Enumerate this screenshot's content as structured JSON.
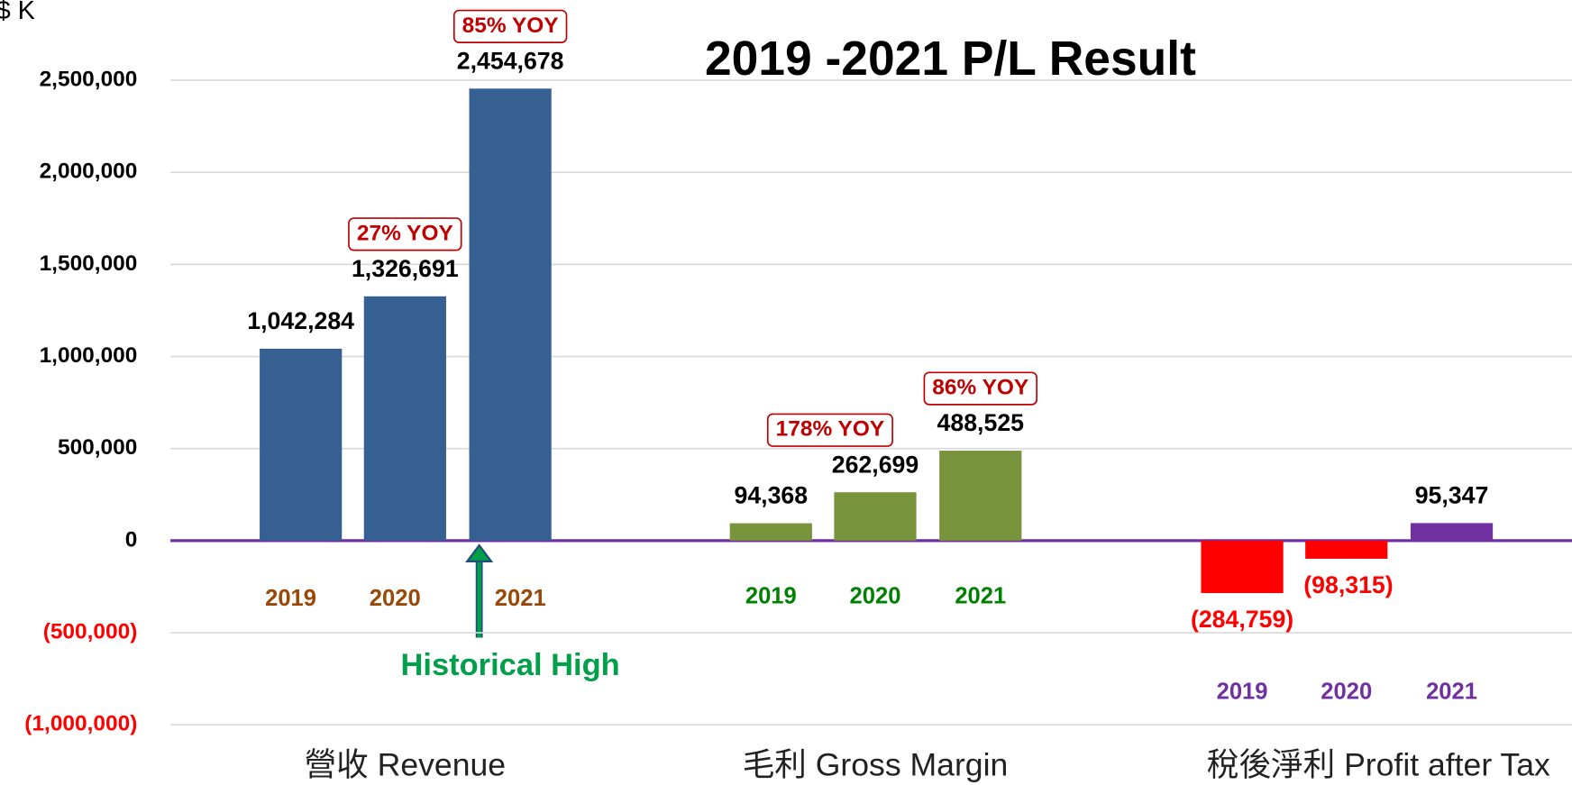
{
  "chart_data": {
    "type": "grouped-bar",
    "title": "2019 -2021 P/L Result",
    "y_unit": "$ K",
    "annotation": "Historical High",
    "ylim": [
      -1000000,
      2500000
    ],
    "yticks": [
      {
        "value": -1000000,
        "label": "(1,000,000)"
      },
      {
        "value": -500000,
        "label": "(500,000)"
      },
      0,
      {
        "value": 500000,
        "label": "500,000"
      },
      {
        "value": 1000000,
        "label": "1,000,000"
      },
      {
        "value": 1500000,
        "label": "1,500,000"
      },
      {
        "value": 2000000,
        "label": "2,000,000"
      },
      {
        "value": 2500000,
        "label": "2,500,000"
      }
    ],
    "grid": true,
    "groups": [
      {
        "name": "營收 Revenue",
        "categories": [
          "2019",
          "2020",
          "2021"
        ],
        "values": [
          1042284,
          1326691,
          2454678
        ],
        "value_labels": [
          "1,042,284",
          "1,326,691",
          "2,454,678"
        ],
        "yoy": [
          null,
          "27% YOY",
          "85% YOY"
        ],
        "colors": [
          "#376092",
          "#376092",
          "#376092"
        ],
        "category_color": "#984807"
      },
      {
        "name": "毛利 Gross Margin",
        "categories": [
          "2019",
          "2020",
          "2021"
        ],
        "values": [
          94368,
          262699,
          488525
        ],
        "value_labels": [
          "94,368",
          "262,699",
          "488,525"
        ],
        "yoy": [
          null,
          "178% YOY",
          "86% YOY"
        ],
        "colors": [
          "#77933c",
          "#77933c",
          "#77933c"
        ],
        "category_color": "#008000"
      },
      {
        "name": "稅後淨利 Profit after Tax",
        "categories": [
          "2019",
          "2020",
          "2021"
        ],
        "values": [
          -284759,
          -98315,
          95347
        ],
        "value_labels": [
          "(284,759)",
          "(98,315)",
          "95,347"
        ],
        "yoy": [
          null,
          null,
          null
        ],
        "colors": [
          "#ff0000",
          "#ff0000",
          "#7030a0"
        ],
        "category_color": "#7030a0"
      }
    ]
  }
}
